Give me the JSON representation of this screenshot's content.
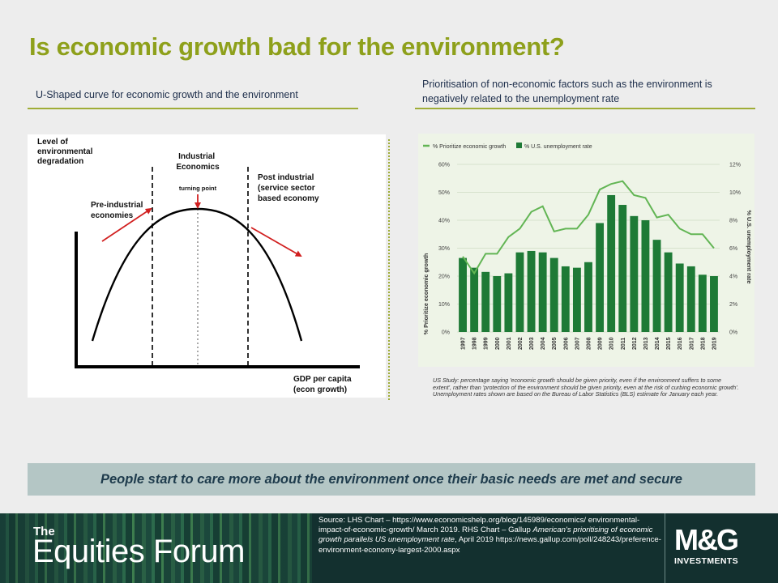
{
  "slide": {
    "title": "Is economic growth bad for the environment?",
    "left_subtitle": "U-Shaped curve for economic growth and the environment",
    "right_subtitle": "Prioritisation of non-economic factors such as the environment is negatively related to the unemployment rate",
    "conclusion": "People start to care more about the environment once their basic needs are met and secure"
  },
  "left_chart": {
    "y_axis_label": [
      "Level of",
      "environmental",
      "degradation"
    ],
    "x_axis_label": [
      "GDP per capita",
      "(econ growth)"
    ],
    "stages": {
      "pre_industrial": [
        "Pre-industrial",
        "economies"
      ],
      "industrial": [
        "Industrial",
        "Economics"
      ],
      "turning_point": "turning point",
      "post_industrial": [
        "Post industrial",
        "(service sector",
        "based economy"
      ]
    },
    "colors": {
      "curve": "#000000",
      "arrows": "#d11f1f"
    }
  },
  "chart_data": {
    "type": "bar",
    "categories": [
      "1997",
      "1998",
      "1999",
      "2000",
      "2001",
      "2002",
      "2003",
      "2004",
      "2005",
      "2006",
      "2007",
      "2008",
      "2009",
      "2010",
      "2011",
      "2012",
      "2013",
      "2014",
      "2015",
      "2016",
      "2017",
      "2018",
      "2019"
    ],
    "series": [
      {
        "name": "% Prioritize economic growth",
        "type": "line",
        "axis": "left",
        "color": "#62b554",
        "values": [
          27,
          21,
          28,
          28,
          34,
          37,
          43,
          45,
          36,
          37,
          37,
          42,
          51,
          53,
          54,
          49,
          48,
          41,
          42,
          37,
          35,
          35,
          30
        ]
      },
      {
        "name": "% U.S. unemployment rate",
        "type": "bar",
        "axis": "right",
        "color": "#1e7a36",
        "values": [
          5.3,
          4.6,
          4.3,
          4.0,
          4.2,
          5.7,
          5.8,
          5.7,
          5.3,
          4.7,
          4.6,
          5.0,
          7.8,
          9.8,
          9.1,
          8.3,
          8.0,
          6.6,
          5.7,
          4.9,
          4.7,
          4.1,
          4.0
        ]
      }
    ],
    "ylabel": "% Prioritize economic growth",
    "y2label": "% U.S. unemployment rate",
    "ylim": [
      0,
      60
    ],
    "y2lim": [
      0,
      12
    ],
    "yticks": [
      "0%",
      "10%",
      "20%",
      "30%",
      "40%",
      "50%",
      "60%"
    ],
    "y2ticks": [
      "0%",
      "2%",
      "4%",
      "6%",
      "8%",
      "10%",
      "12%"
    ],
    "legend_position": "top-left",
    "grid": true
  },
  "note": "US Study: percentage saying 'economic growth should be given priority, even if the environment suffers to some extent', rather than 'protection of the environment should be given priority, even at the risk of curbing economic growth'. Unemployment rates shown are based on the Bureau of Labor Statistics (BLS) estimate for January each year.",
  "footer": {
    "brand_the": "The",
    "brand_name": "Equities Forum",
    "source_1": "Source: LHS Chart – https://www.economicshelp.org/blog/145989/economics/ environmental-impact-of-economic-growth/ March 2019. RHS Chart – Gallup ",
    "source_title": "American's prioritising of economic growth parallels US unemployment rate",
    "source_2": ", April 2019 https://news.gallup.com/poll/248243/preference-environment-economy-largest-2000.aspx",
    "logo_mark": "M&G",
    "logo_sub": "INVESTMENTS"
  }
}
